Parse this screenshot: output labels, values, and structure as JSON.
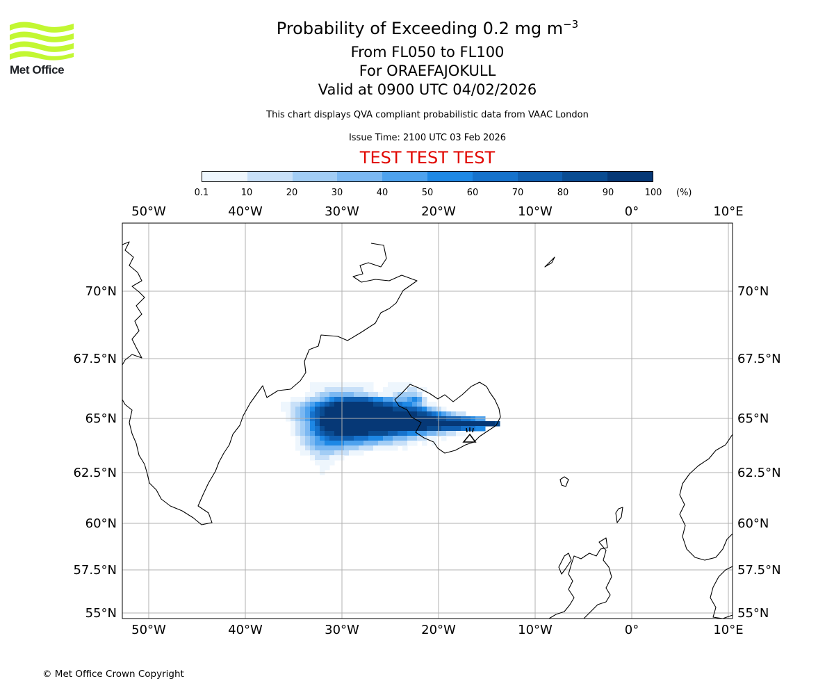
{
  "logo": {
    "text": "Met Office",
    "wave_color": "#c2f732",
    "icon": "met-office-waves-icon"
  },
  "header": {
    "title_main": "Probability of Exceeding 0.2 mg m",
    "title_superscript": "−3",
    "levels": "From FL050 to FL100",
    "volcano": "For ORAEFAJOKULL",
    "valid": "Valid at 0900 UTC 04/02/2026",
    "info": "This chart displays QVA compliant probabilistic data from VAAC London",
    "issue_time": "Issue Time: 2100 UTC 03 Feb 2026",
    "test_banner": "TEST TEST TEST",
    "test_color": "#e10600"
  },
  "colorbar": {
    "ticks": [
      "0.1",
      "10",
      "20",
      "30",
      "40",
      "50",
      "60",
      "70",
      "80",
      "90",
      "100"
    ],
    "unit": "(%)",
    "colors": [
      "#eef6fd",
      "#c8e0f8",
      "#a2cdf5",
      "#7bb8f2",
      "#4ea2ee",
      "#1e88e5",
      "#1672cc",
      "#0f5eb0",
      "#0a4c92",
      "#063876"
    ]
  },
  "map": {
    "lon_labels": [
      "50°W",
      "40°W",
      "30°W",
      "20°W",
      "10°W",
      "0°",
      "10°E"
    ],
    "lat_labels": [
      "70°N",
      "67.5°N",
      "65°N",
      "62.5°N",
      "60°N",
      "57.5°N",
      "55°N"
    ],
    "lons": [
      -50,
      -40,
      -30,
      -20,
      -10,
      0,
      10
    ],
    "lats": [
      70,
      67.5,
      65,
      62.5,
      60,
      57.5,
      55
    ],
    "volcano_symbol": "volcano-icon"
  },
  "footer": {
    "copyright": "© Met Office Crown Copyright"
  }
}
